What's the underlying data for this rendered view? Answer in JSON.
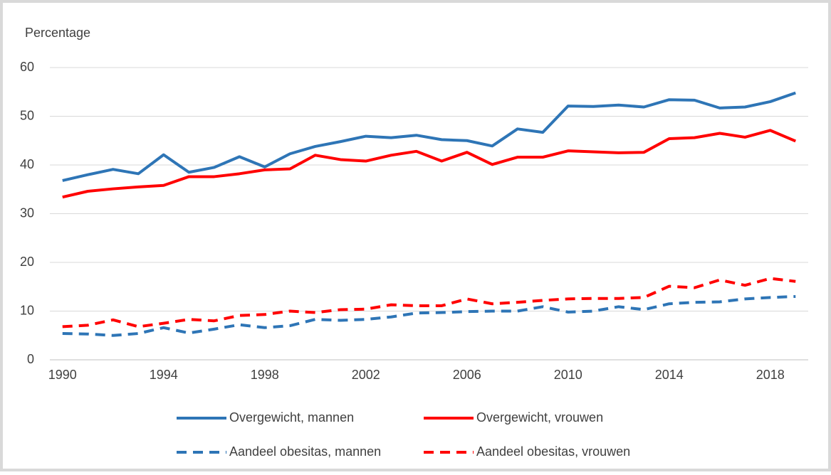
{
  "chart_data": {
    "type": "line",
    "y_label": "Percentage",
    "x": [
      1990,
      1991,
      1992,
      1993,
      1994,
      1995,
      1996,
      1997,
      1998,
      1999,
      2000,
      2001,
      2002,
      2003,
      2004,
      2005,
      2006,
      2007,
      2008,
      2009,
      2010,
      2011,
      2012,
      2013,
      2014,
      2015,
      2016,
      2017,
      2018,
      2019
    ],
    "xlim": [
      1989.5,
      2019.5
    ],
    "xticks": [
      1990,
      1994,
      1998,
      2002,
      2006,
      2010,
      2014,
      2018
    ],
    "ylim": [
      0,
      60
    ],
    "yticks": [
      0,
      10,
      20,
      30,
      40,
      50,
      60
    ],
    "grid": true,
    "legend": "bottom",
    "series": [
      {
        "name": "Overgewicht, mannen",
        "color": "#2e75b6",
        "dash": false,
        "values": [
          36.8,
          38.0,
          39.1,
          38.2,
          42.1,
          38.5,
          39.5,
          41.7,
          39.6,
          42.3,
          43.8,
          44.8,
          45.9,
          45.6,
          46.1,
          45.2,
          45.0,
          43.9,
          47.4,
          46.7,
          52.1,
          52.0,
          52.3,
          51.9,
          53.4,
          53.3,
          51.7,
          51.9,
          53.0,
          54.8
        ]
      },
      {
        "name": "Overgewicht, vrouwen",
        "color": "#ff0000",
        "dash": false,
        "values": [
          33.4,
          34.6,
          35.1,
          35.5,
          35.8,
          37.6,
          37.6,
          38.2,
          39.0,
          39.2,
          42.0,
          41.1,
          40.8,
          42.0,
          42.8,
          40.8,
          42.6,
          40.1,
          41.6,
          41.6,
          42.9,
          42.7,
          42.5,
          42.6,
          45.4,
          45.6,
          46.5,
          45.7,
          47.1,
          44.9
        ]
      },
      {
        "name": "Aandeel obesitas, mannen",
        "color": "#2e75b6",
        "dash": true,
        "values": [
          5.4,
          5.3,
          5.0,
          5.4,
          6.6,
          5.5,
          6.3,
          7.2,
          6.6,
          7.0,
          8.3,
          8.1,
          8.3,
          8.8,
          9.6,
          9.7,
          9.9,
          10.0,
          10.0,
          10.9,
          9.8,
          10.0,
          10.9,
          10.3,
          11.5,
          11.8,
          11.9,
          12.5,
          12.8,
          13.0
        ]
      },
      {
        "name": "Aandeel obesitas, vrouwen",
        "color": "#ff0000",
        "dash": true,
        "values": [
          6.8,
          7.1,
          8.2,
          6.8,
          7.5,
          8.3,
          8.0,
          9.1,
          9.3,
          10.0,
          9.7,
          10.3,
          10.4,
          11.3,
          11.1,
          11.1,
          12.5,
          11.5,
          11.8,
          12.2,
          12.5,
          12.6,
          12.6,
          12.8,
          15.1,
          14.8,
          16.4,
          15.3,
          16.7,
          16.1
        ]
      }
    ]
  }
}
